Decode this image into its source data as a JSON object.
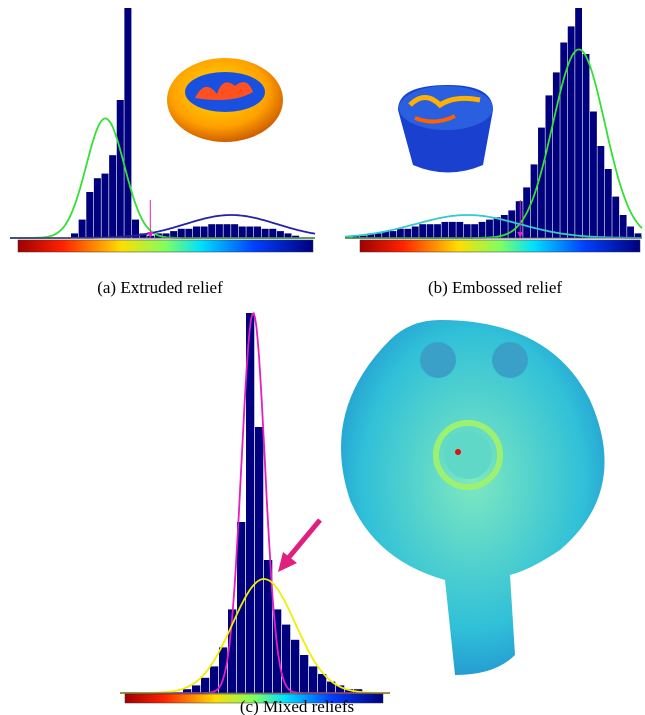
{
  "chart_data": [
    {
      "type": "histogram",
      "title": "(a) Extruded relief",
      "color": "#00007f",
      "values": [
        0,
        0,
        0,
        0,
        0,
        0,
        0,
        0,
        2,
        8,
        20,
        26,
        28,
        36,
        60,
        100,
        8,
        2,
        1,
        2,
        2,
        3,
        4,
        4,
        5,
        5,
        6,
        6,
        6,
        6,
        5,
        5,
        5,
        4,
        4,
        3,
        2,
        1,
        0,
        0
      ],
      "curves": [
        {
          "color": "#33e033",
          "mean": 12,
          "sd": 2.5,
          "peak": 52
        },
        {
          "color": "#2222aa",
          "mean": 28.5,
          "sd": 6,
          "peak": 10
        }
      ],
      "marker": 18.4
    },
    {
      "type": "histogram",
      "title": "(b) Embossed relief",
      "color": "#00007f",
      "values": [
        0,
        1,
        1,
        2,
        2,
        3,
        3,
        4,
        4,
        5,
        6,
        6,
        6,
        7,
        7,
        7,
        6,
        6,
        7,
        8,
        9,
        10,
        12,
        16,
        22,
        32,
        48,
        62,
        72,
        85,
        92,
        100,
        80,
        55,
        40,
        30,
        18,
        10,
        5,
        2
      ],
      "curves": [
        {
          "color": "#33e033",
          "mean": 31,
          "sd": 3.5,
          "peak": 82
        },
        {
          "color": "#33cccc",
          "mean": 16,
          "sd": 7,
          "peak": 10
        }
      ],
      "marker": 23.6
    },
    {
      "type": "histogram",
      "title": "(c) Mixed reliefs",
      "color": "#00007f",
      "values": [
        0,
        0,
        0,
        0,
        0,
        0,
        0,
        1,
        2,
        4,
        7,
        12,
        22,
        45,
        100,
        70,
        35,
        22,
        18,
        14,
        10,
        7,
        5,
        3,
        2,
        1,
        1,
        0,
        0,
        0
      ],
      "curves": [
        {
          "color": "#e020c0",
          "mean": 14.3,
          "sd": 1.3,
          "peak": 100
        },
        {
          "color": "#eeee00",
          "mean": 15.5,
          "sd": 3.5,
          "peak": 30
        }
      ]
    }
  ]
}
